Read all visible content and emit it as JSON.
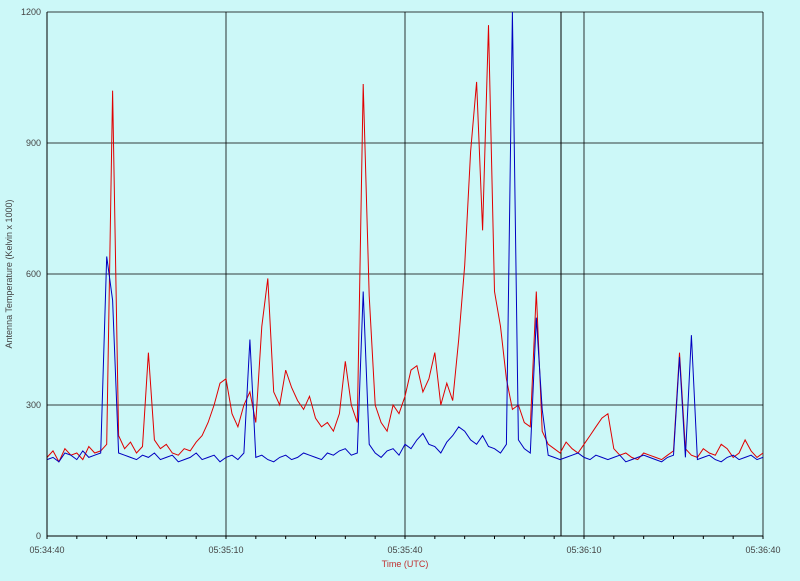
{
  "chart_data": {
    "type": "line",
    "y_label": "Antenna Temperature (Kelvin x 1000)",
    "x_label": "Time (UTC)",
    "x": [
      "05:34:40",
      "05:34:41",
      "05:34:42",
      "05:34:43",
      "05:34:44",
      "05:34:45",
      "05:34:46",
      "05:34:47",
      "05:34:48",
      "05:34:49",
      "05:34:50",
      "05:34:51",
      "05:34:52",
      "05:34:53",
      "05:34:54",
      "05:34:55",
      "05:34:56",
      "05:34:57",
      "05:34:58",
      "05:34:59",
      "05:35:00",
      "05:35:01",
      "05:35:02",
      "05:35:03",
      "05:35:04",
      "05:35:05",
      "05:35:06",
      "05:35:07",
      "05:35:08",
      "05:35:09",
      "05:35:10",
      "05:35:11",
      "05:35:12",
      "05:35:13",
      "05:35:14",
      "05:35:15",
      "05:35:16",
      "05:35:17",
      "05:35:18",
      "05:35:19",
      "05:35:20",
      "05:35:21",
      "05:35:22",
      "05:35:23",
      "05:35:24",
      "05:35:25",
      "05:35:26",
      "05:35:27",
      "05:35:28",
      "05:35:29",
      "05:35:30",
      "05:35:31",
      "05:35:32",
      "05:35:33",
      "05:35:34",
      "05:35:35",
      "05:35:36",
      "05:35:37",
      "05:35:38",
      "05:35:39",
      "05:35:40",
      "05:35:41",
      "05:35:42",
      "05:35:43",
      "05:35:44",
      "05:35:45",
      "05:35:46",
      "05:35:47",
      "05:35:48",
      "05:35:49",
      "05:35:50",
      "05:35:51",
      "05:35:52",
      "05:35:53",
      "05:35:54",
      "05:35:55",
      "05:35:56",
      "05:35:57",
      "05:35:58",
      "05:35:59",
      "05:36:00",
      "05:36:01",
      "05:36:02",
      "05:36:03",
      "05:36:04",
      "05:36:05",
      "05:36:06",
      "05:36:07",
      "05:36:08",
      "05:36:09",
      "05:36:10",
      "05:36:11",
      "05:36:12",
      "05:36:13",
      "05:36:14",
      "05:36:15",
      "05:36:16",
      "05:36:17",
      "05:36:18",
      "05:36:19",
      "05:36:20",
      "05:36:21",
      "05:36:22",
      "05:36:23",
      "05:36:24",
      "05:36:25",
      "05:36:26",
      "05:36:27",
      "05:36:28",
      "05:36:29",
      "05:36:30",
      "05:36:31",
      "05:36:32",
      "05:36:33",
      "05:36:34",
      "05:36:35",
      "05:36:36",
      "05:36:37",
      "05:36:38",
      "05:36:39",
      "05:36:40"
    ],
    "series": [
      {
        "color": "#e00000",
        "values": [
          180,
          195,
          170,
          200,
          185,
          190,
          175,
          205,
          190,
          195,
          210,
          1020,
          230,
          200,
          215,
          190,
          205,
          420,
          220,
          200,
          210,
          190,
          185,
          200,
          195,
          215,
          230,
          260,
          300,
          350,
          360,
          280,
          250,
          300,
          330,
          260,
          480,
          590,
          330,
          300,
          380,
          340,
          310,
          290,
          320,
          270,
          250,
          260,
          240,
          280,
          400,
          300,
          260,
          1035,
          550,
          300,
          260,
          240,
          300,
          280,
          320,
          380,
          390,
          330,
          360,
          420,
          300,
          350,
          310,
          450,
          620,
          880,
          1040,
          700,
          1170,
          560,
          480,
          360,
          290,
          300,
          260,
          250,
          560,
          240,
          210,
          200,
          190,
          215,
          200,
          190,
          210,
          230,
          250,
          270,
          280,
          200,
          185,
          190,
          180,
          175,
          190,
          185,
          180,
          175,
          185,
          195,
          420,
          200,
          185,
          180,
          200,
          190,
          185,
          210,
          200,
          180,
          190,
          220,
          195,
          180,
          190
        ]
      },
      {
        "color": "#0000c0",
        "values": [
          175,
          180,
          170,
          190,
          185,
          175,
          195,
          180,
          185,
          190,
          640,
          540,
          190,
          185,
          180,
          175,
          185,
          180,
          190,
          175,
          180,
          185,
          170,
          175,
          180,
          190,
          175,
          180,
          185,
          170,
          180,
          185,
          175,
          190,
          450,
          180,
          185,
          175,
          170,
          180,
          185,
          175,
          180,
          190,
          185,
          180,
          175,
          190,
          185,
          195,
          200,
          185,
          190,
          560,
          210,
          190,
          180,
          195,
          200,
          185,
          210,
          200,
          220,
          235,
          210,
          205,
          190,
          215,
          230,
          250,
          240,
          220,
          210,
          230,
          205,
          200,
          190,
          210,
          1200,
          220,
          200,
          190,
          500,
          290,
          185,
          180,
          175,
          180,
          185,
          190,
          180,
          175,
          185,
          180,
          175,
          180,
          185,
          170,
          175,
          180,
          185,
          180,
          175,
          170,
          180,
          185,
          410,
          180,
          460,
          175,
          180,
          185,
          175,
          170,
          180,
          185,
          175,
          180,
          185,
          175,
          180
        ]
      }
    ],
    "xlim": [
      "05:34:40",
      "05:36:40"
    ],
    "xticks": [
      "05:34:40",
      "05:35:10",
      "05:35:40",
      "05:36:10",
      "05:36:40"
    ],
    "ylim": [
      0,
      1200
    ],
    "yticks": [
      0,
      300,
      600,
      900,
      1200
    ],
    "grid": true
  }
}
